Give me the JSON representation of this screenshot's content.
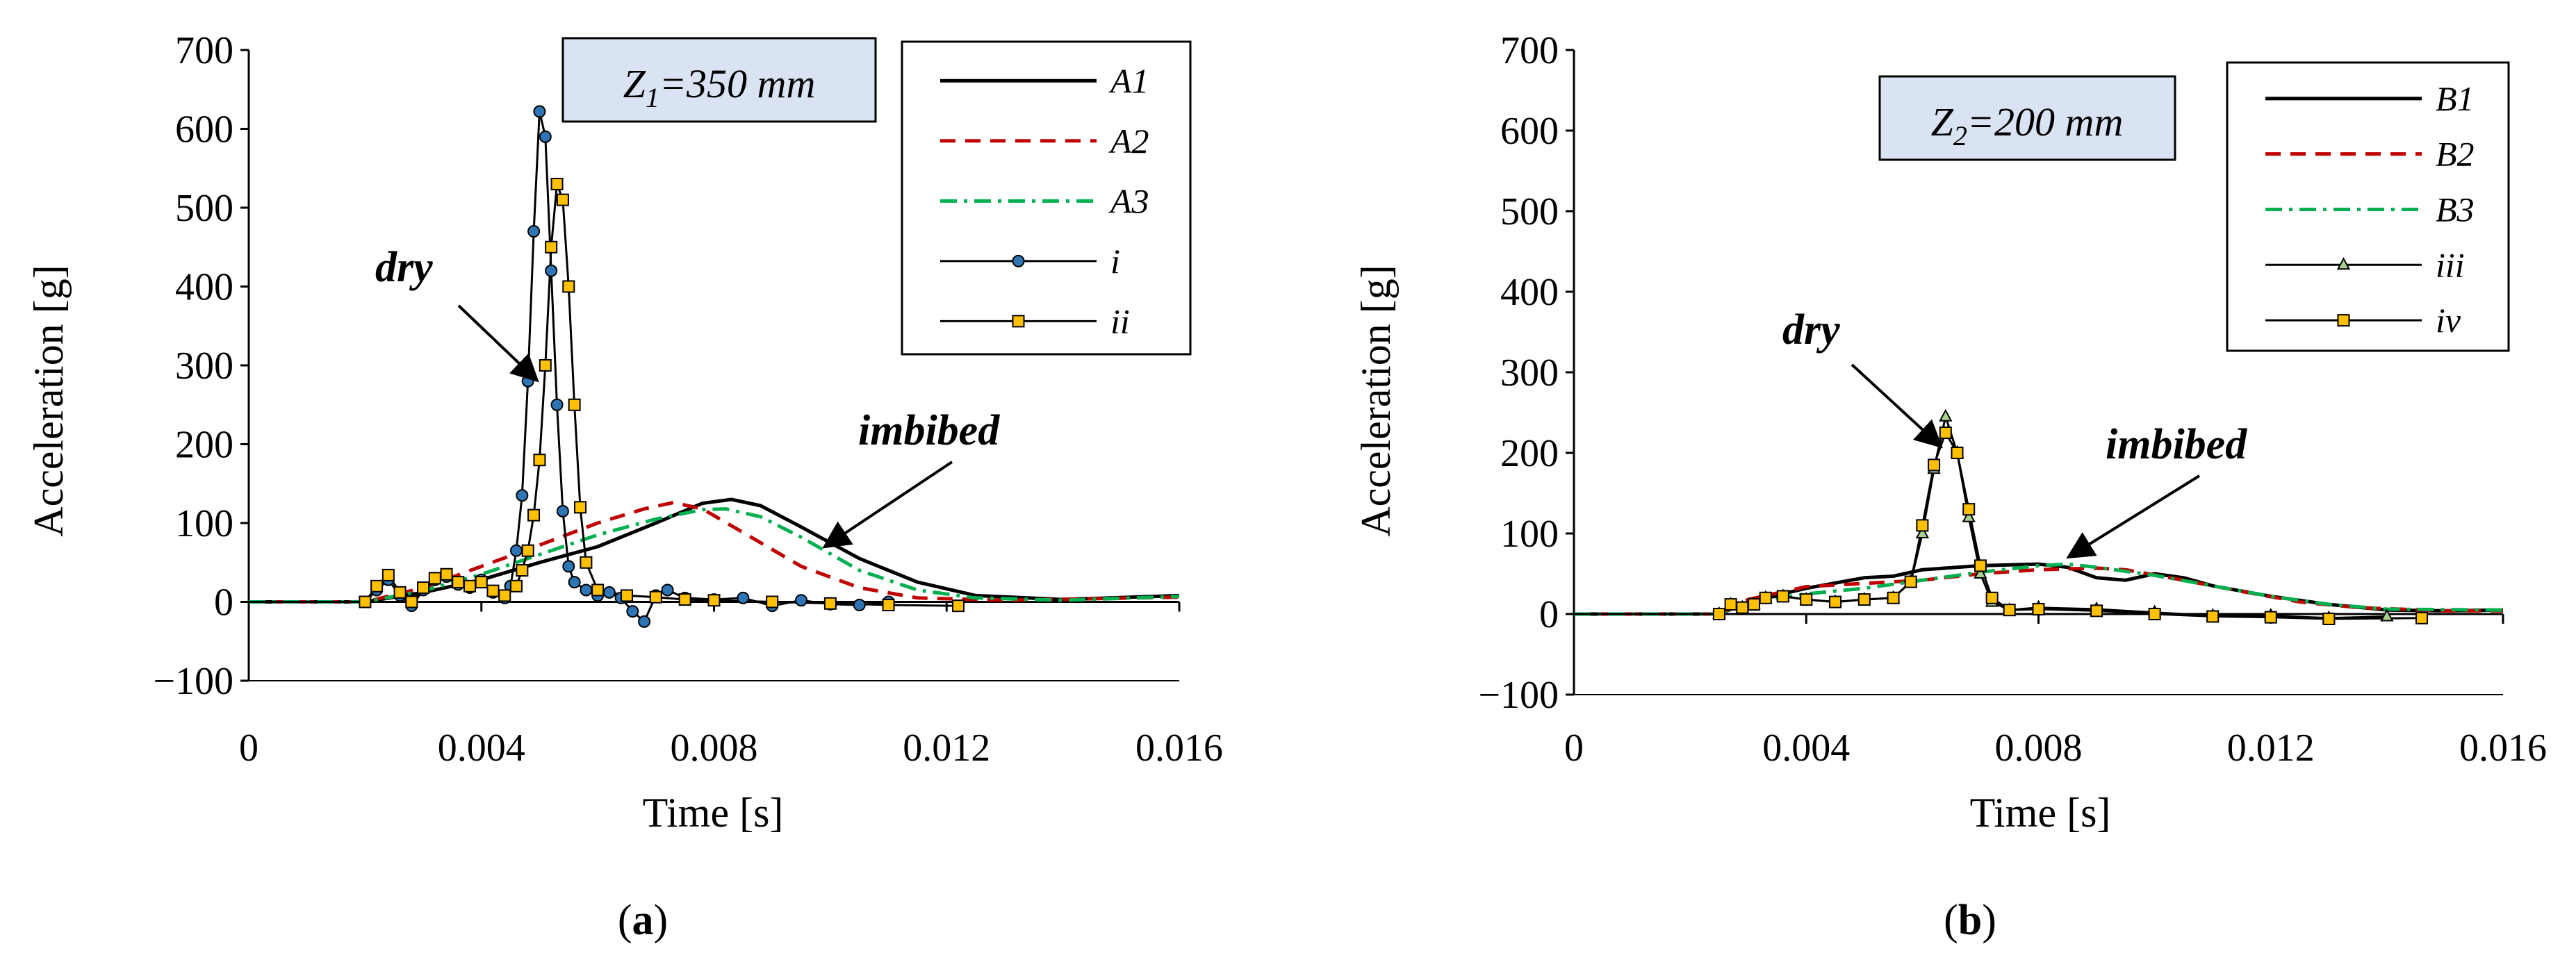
{
  "chart_data": [
    {
      "type": "line",
      "caption": "(a)",
      "caption_letter": "a",
      "xlabel": "Time [s]",
      "ylabel": "Acceleration [g]",
      "xlim": [
        0,
        0.016
      ],
      "ylim": [
        -100,
        700
      ],
      "xticks": [
        "0",
        "0.004",
        "0.008",
        "0.012",
        "0.016"
      ],
      "xtick_values": [
        0,
        0.004,
        0.008,
        0.012,
        0.016
      ],
      "yticks": [
        "−100",
        "0",
        "100",
        "200",
        "300",
        "400",
        "500",
        "600",
        "700"
      ],
      "ytick_values": [
        -100,
        0,
        100,
        200,
        300,
        400,
        500,
        600,
        700
      ],
      "zlabel_parts": [
        "Z",
        "1",
        "=350 mm"
      ],
      "annotations": {
        "dry": "dry",
        "imbibed": "imbibed"
      },
      "series": [
        {
          "name": "A1",
          "style": "solid",
          "color": "#000000",
          "points": [
            [
              0,
              0
            ],
            [
              0.002,
              0
            ],
            [
              0.003,
              12
            ],
            [
              0.004,
              28
            ],
            [
              0.005,
              50
            ],
            [
              0.006,
              70
            ],
            [
              0.007,
              100
            ],
            [
              0.0078,
              125
            ],
            [
              0.0083,
              130
            ],
            [
              0.0088,
              122
            ],
            [
              0.0095,
              95
            ],
            [
              0.0105,
              55
            ],
            [
              0.0115,
              25
            ],
            [
              0.0125,
              8
            ],
            [
              0.014,
              3
            ],
            [
              0.016,
              8
            ]
          ]
        },
        {
          "name": "A2",
          "style": "dashed",
          "color": "#c00000",
          "points": [
            [
              0,
              0
            ],
            [
              0.002,
              0
            ],
            [
              0.003,
              18
            ],
            [
              0.004,
              45
            ],
            [
              0.005,
              72
            ],
            [
              0.006,
              100
            ],
            [
              0.0068,
              118
            ],
            [
              0.0073,
              126
            ],
            [
              0.0078,
              118
            ],
            [
              0.0085,
              88
            ],
            [
              0.0095,
              45
            ],
            [
              0.0105,
              18
            ],
            [
              0.0115,
              5
            ],
            [
              0.013,
              2
            ],
            [
              0.016,
              6
            ]
          ]
        },
        {
          "name": "A3",
          "style": "dashdot",
          "color": "#00b050",
          "points": [
            [
              0,
              0
            ],
            [
              0.002,
              0
            ],
            [
              0.003,
              14
            ],
            [
              0.004,
              35
            ],
            [
              0.005,
              60
            ],
            [
              0.006,
              85
            ],
            [
              0.007,
              105
            ],
            [
              0.0078,
              117
            ],
            [
              0.0082,
              118
            ],
            [
              0.0088,
              108
            ],
            [
              0.0095,
              82
            ],
            [
              0.0105,
              40
            ],
            [
              0.0115,
              15
            ],
            [
              0.0125,
              5
            ],
            [
              0.014,
              2
            ],
            [
              0.016,
              7
            ]
          ]
        },
        {
          "name": "i",
          "style": "marker-circle",
          "color": "#000000",
          "marker_fill": "#2e75b6",
          "points": [
            [
              0,
              0
            ],
            [
              0.002,
              0
            ],
            [
              0.0022,
              15
            ],
            [
              0.0024,
              28
            ],
            [
              0.0026,
              8
            ],
            [
              0.0028,
              -5
            ],
            [
              0.003,
              15
            ],
            [
              0.0032,
              28
            ],
            [
              0.0034,
              32
            ],
            [
              0.0036,
              22
            ],
            [
              0.0038,
              18
            ],
            [
              0.004,
              28
            ],
            [
              0.0042,
              12
            ],
            [
              0.0044,
              5
            ],
            [
              0.0045,
              20
            ],
            [
              0.0046,
              65
            ],
            [
              0.0047,
              135
            ],
            [
              0.0048,
              280
            ],
            [
              0.0049,
              470
            ],
            [
              0.005,
              622
            ],
            [
              0.0051,
              590
            ],
            [
              0.0052,
              420
            ],
            [
              0.0053,
              250
            ],
            [
              0.0054,
              115
            ],
            [
              0.0055,
              45
            ],
            [
              0.0056,
              25
            ],
            [
              0.0058,
              15
            ],
            [
              0.006,
              8
            ],
            [
              0.0062,
              12
            ],
            [
              0.0064,
              5
            ],
            [
              0.0066,
              -12
            ],
            [
              0.0068,
              -25
            ],
            [
              0.007,
              8
            ],
            [
              0.0072,
              15
            ],
            [
              0.0075,
              5
            ],
            [
              0.008,
              3
            ],
            [
              0.0085,
              5
            ],
            [
              0.009,
              -5
            ],
            [
              0.0095,
              2
            ],
            [
              0.01,
              -3
            ],
            [
              0.0105,
              -4
            ],
            [
              0.011,
              0
            ]
          ]
        },
        {
          "name": "ii",
          "style": "marker-square",
          "color": "#000000",
          "marker_fill": "#ffc000",
          "points": [
            [
              0,
              0
            ],
            [
              0.002,
              0
            ],
            [
              0.0022,
              20
            ],
            [
              0.0024,
              34
            ],
            [
              0.0026,
              12
            ],
            [
              0.0028,
              0
            ],
            [
              0.003,
              18
            ],
            [
              0.0032,
              30
            ],
            [
              0.0034,
              35
            ],
            [
              0.0036,
              25
            ],
            [
              0.0038,
              20
            ],
            [
              0.004,
              25
            ],
            [
              0.0042,
              14
            ],
            [
              0.0044,
              8
            ],
            [
              0.0046,
              20
            ],
            [
              0.0047,
              40
            ],
            [
              0.0048,
              65
            ],
            [
              0.0049,
              110
            ],
            [
              0.005,
              180
            ],
            [
              0.0051,
              300
            ],
            [
              0.0052,
              450
            ],
            [
              0.0053,
              530
            ],
            [
              0.0054,
              510
            ],
            [
              0.0055,
              400
            ],
            [
              0.0056,
              250
            ],
            [
              0.0057,
              120
            ],
            [
              0.0058,
              50
            ],
            [
              0.006,
              15
            ],
            [
              0.0065,
              8
            ],
            [
              0.007,
              6
            ],
            [
              0.0075,
              3
            ],
            [
              0.008,
              2
            ],
            [
              0.009,
              0
            ],
            [
              0.01,
              -2
            ],
            [
              0.011,
              -4
            ],
            [
              0.0122,
              -5
            ]
          ]
        }
      ],
      "legend": [
        "A1",
        "A2",
        "A3",
        "i",
        "ii"
      ]
    },
    {
      "type": "line",
      "caption": "(b)",
      "caption_letter": "b",
      "xlabel": "Time [s]",
      "ylabel": "Acceleration [g]",
      "xlim": [
        0,
        0.016
      ],
      "ylim": [
        -100,
        700
      ],
      "xticks": [
        "0",
        "0.004",
        "0.008",
        "0.012",
        "0.016"
      ],
      "xtick_values": [
        0,
        0.004,
        0.008,
        0.012,
        0.016
      ],
      "yticks": [
        "−100",
        "0",
        "100",
        "200",
        "300",
        "400",
        "500",
        "600",
        "700"
      ],
      "ytick_values": [
        -100,
        0,
        100,
        200,
        300,
        400,
        500,
        600,
        700
      ],
      "zlabel_parts": [
        "Z",
        "2",
        "=200 mm"
      ],
      "annotations": {
        "dry": "dry",
        "imbibed": "imbibed"
      },
      "series": [
        {
          "name": "B1",
          "style": "solid",
          "color": "#000000",
          "points": [
            [
              0,
              0
            ],
            [
              0.0025,
              0
            ],
            [
              0.003,
              15
            ],
            [
              0.004,
              32
            ],
            [
              0.005,
              45
            ],
            [
              0.0055,
              47
            ],
            [
              0.006,
              55
            ],
            [
              0.007,
              60
            ],
            [
              0.008,
              62
            ],
            [
              0.0085,
              58
            ],
            [
              0.009,
              45
            ],
            [
              0.0095,
              42
            ],
            [
              0.01,
              50
            ],
            [
              0.0105,
              45
            ],
            [
              0.011,
              35
            ],
            [
              0.012,
              22
            ],
            [
              0.013,
              12
            ],
            [
              0.014,
              5
            ],
            [
              0.015,
              4
            ],
            [
              0.016,
              5
            ]
          ]
        },
        {
          "name": "B2",
          "style": "dashed",
          "color": "#c00000",
          "points": [
            [
              0,
              0
            ],
            [
              0.0025,
              0
            ],
            [
              0.003,
              18
            ],
            [
              0.004,
              34
            ],
            [
              0.005,
              38
            ],
            [
              0.006,
              42
            ],
            [
              0.007,
              50
            ],
            [
              0.008,
              55
            ],
            [
              0.009,
              57
            ],
            [
              0.0095,
              55
            ],
            [
              0.0105,
              42
            ],
            [
              0.0115,
              28
            ],
            [
              0.0125,
              15
            ],
            [
              0.0135,
              8
            ],
            [
              0.015,
              4
            ],
            [
              0.016,
              4
            ]
          ]
        },
        {
          "name": "B3",
          "style": "dashdot",
          "color": "#00b050",
          "points": [
            [
              0,
              0
            ],
            [
              0.0025,
              0
            ],
            [
              0.003,
              14
            ],
            [
              0.004,
              25
            ],
            [
              0.005,
              32
            ],
            [
              0.006,
              42
            ],
            [
              0.007,
              52
            ],
            [
              0.008,
              60
            ],
            [
              0.0085,
              62
            ],
            [
              0.009,
              58
            ],
            [
              0.01,
              48
            ],
            [
              0.011,
              35
            ],
            [
              0.012,
              22
            ],
            [
              0.013,
              12
            ],
            [
              0.014,
              6
            ],
            [
              0.016,
              5
            ]
          ]
        },
        {
          "name": "iii",
          "style": "marker-triangle",
          "color": "#000000",
          "marker_fill": "#a9d18e",
          "points": [
            [
              0,
              0
            ],
            [
              0.0025,
              0
            ],
            [
              0.0027,
              12
            ],
            [
              0.0029,
              8
            ],
            [
              0.0031,
              12
            ],
            [
              0.0033,
              20
            ],
            [
              0.0036,
              22
            ],
            [
              0.004,
              18
            ],
            [
              0.0045,
              15
            ],
            [
              0.005,
              18
            ],
            [
              0.0055,
              20
            ],
            [
              0.0058,
              40
            ],
            [
              0.006,
              100
            ],
            [
              0.0062,
              180
            ],
            [
              0.0064,
              245
            ],
            [
              0.0066,
              200
            ],
            [
              0.0068,
              120
            ],
            [
              0.007,
              50
            ],
            [
              0.0072,
              15
            ],
            [
              0.0075,
              5
            ],
            [
              0.008,
              8
            ],
            [
              0.009,
              6
            ],
            [
              0.01,
              2
            ],
            [
              0.011,
              -2
            ],
            [
              0.012,
              -2
            ],
            [
              0.013,
              -5
            ],
            [
              0.014,
              -3
            ]
          ]
        },
        {
          "name": "iv",
          "style": "marker-square",
          "color": "#000000",
          "marker_fill": "#ffc000",
          "points": [
            [
              0,
              0
            ],
            [
              0.0025,
              0
            ],
            [
              0.0027,
              12
            ],
            [
              0.0029,
              8
            ],
            [
              0.0031,
              12
            ],
            [
              0.0033,
              20
            ],
            [
              0.0036,
              22
            ],
            [
              0.004,
              18
            ],
            [
              0.0045,
              15
            ],
            [
              0.005,
              18
            ],
            [
              0.0055,
              20
            ],
            [
              0.0058,
              40
            ],
            [
              0.006,
              110
            ],
            [
              0.0062,
              185
            ],
            [
              0.0064,
              225
            ],
            [
              0.0066,
              200
            ],
            [
              0.0068,
              130
            ],
            [
              0.007,
              60
            ],
            [
              0.0072,
              20
            ],
            [
              0.0075,
              5
            ],
            [
              0.008,
              6
            ],
            [
              0.009,
              4
            ],
            [
              0.01,
              0
            ],
            [
              0.011,
              -3
            ],
            [
              0.012,
              -4
            ],
            [
              0.013,
              -6
            ],
            [
              0.0146,
              -5
            ]
          ]
        }
      ],
      "legend": [
        "B1",
        "B2",
        "B3",
        "iii",
        "iv"
      ]
    }
  ]
}
